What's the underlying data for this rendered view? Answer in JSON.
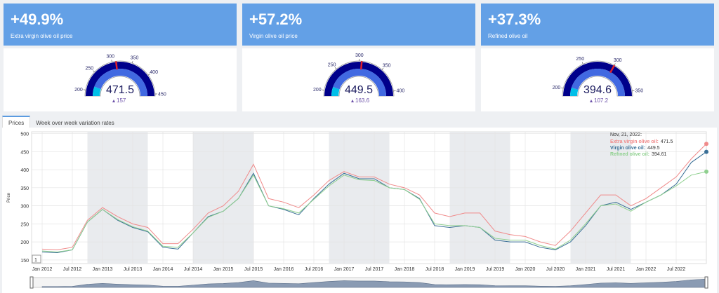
{
  "kpis": [
    {
      "value": "+49.9%",
      "label": "Extra virgin olive oil price"
    },
    {
      "value": "+57.2%",
      "label": "Virgin olive oil price"
    },
    {
      "value": "+37.3%",
      "label": "Refined olive oil"
    }
  ],
  "gauges": [
    {
      "value": 471.5,
      "delta": 157,
      "range": [
        185,
        455
      ],
      "ticks": [
        200,
        250,
        300,
        350,
        400,
        450
      ],
      "threshold": 310,
      "band_end": 215
    },
    {
      "value": 449.5,
      "delta": 163.6,
      "range": [
        188,
        410
      ],
      "ticks": [
        200,
        250,
        300,
        350,
        400
      ],
      "threshold": 305,
      "band_end": 212
    },
    {
      "value": 394.6,
      "delta": 107.2,
      "range": [
        188,
        358
      ],
      "ticks": [
        200,
        250,
        300,
        350
      ],
      "threshold": 300,
      "band_end": 205
    }
  ],
  "tabs": [
    "Prices",
    "Week over week variation rates"
  ],
  "zoom_input": "1",
  "tooltip": {
    "date": "Nov, 21, 2022:",
    "items": [
      {
        "label": "Extra virgin olive oil:",
        "value": 471.5
      },
      {
        "label": "Virgin olive oil:",
        "value": 449.5
      },
      {
        "label": "Refined olive oil:",
        "value": 394.61
      }
    ]
  },
  "chart_data": {
    "type": "line",
    "y_label": "Price",
    "x": [
      "Jan 2012",
      "Apr 2012",
      "Jul 2012",
      "Oct 2012",
      "Jan 2013",
      "Apr 2013",
      "Jul 2013",
      "Oct 2013",
      "Jan 2014",
      "Apr 2014",
      "Jul 2014",
      "Oct 2014",
      "Jan 2015",
      "Apr 2015",
      "Jul 2015",
      "Oct 2015",
      "Jan 2016",
      "Apr 2016",
      "Jul 2016",
      "Oct 2016",
      "Jan 2017",
      "Apr 2017",
      "Jul 2017",
      "Oct 2017",
      "Jan 2018",
      "Apr 2018",
      "Jul 2018",
      "Oct 2018",
      "Jan 2019",
      "Apr 2019",
      "Jul 2019",
      "Oct 2019",
      "Jan 2020",
      "Apr 2020",
      "Jul 2020",
      "Oct 2020",
      "Jan 2021",
      "Apr 2021",
      "Jul 2021",
      "Oct 2021",
      "Jan 2022",
      "Apr 2022",
      "Jul 2022",
      "Oct 2022",
      "Nov 2022"
    ],
    "xticks": [
      "Jan 2012",
      "Jul 2012",
      "Jan 2013",
      "Jul 2013",
      "Jan 2014",
      "Jul 2014",
      "Jan 2015",
      "Jul 2015",
      "Jan 2016",
      "Jul 2016",
      "Jan 2017",
      "Jul 2017",
      "Jan 2018",
      "Jul 2018",
      "Jan 2019",
      "Jul 2019",
      "Jan 2020",
      "Jul 2020",
      "Jan 2021",
      "Jul 2021",
      "Jan 2022",
      "Jul 2022"
    ],
    "shaded_ranges": [
      [
        "Oct 2012",
        "Oct 2013"
      ],
      [
        "Jul 2014",
        "Jul 2015"
      ],
      [
        "Oct 2016",
        "Oct 2017"
      ],
      [
        "Oct 2018",
        "Oct 2019"
      ],
      [
        "Oct 2020",
        "Oct 2021"
      ]
    ],
    "ylim": [
      140,
      505
    ],
    "yticks": [
      150,
      200,
      250,
      300,
      350,
      400,
      450,
      500
    ],
    "grid": true,
    "series": [
      {
        "name": "Extra virgin olive oil",
        "color": "#f08a8a",
        "values": [
          180,
          178,
          185,
          260,
          295,
          270,
          250,
          240,
          195,
          195,
          235,
          280,
          300,
          340,
          415,
          320,
          310,
          295,
          330,
          370,
          395,
          380,
          380,
          360,
          350,
          330,
          280,
          270,
          280,
          280,
          230,
          220,
          215,
          200,
          190,
          230,
          280,
          330,
          330,
          300,
          320,
          350,
          380,
          430,
          471.5
        ]
      },
      {
        "name": "Virgin olive oil",
        "color": "#3a6f96",
        "values": [
          172,
          170,
          178,
          255,
          290,
          260,
          240,
          228,
          185,
          180,
          225,
          270,
          285,
          320,
          390,
          300,
          290,
          275,
          320,
          360,
          390,
          375,
          375,
          350,
          345,
          320,
          245,
          240,
          245,
          240,
          205,
          200,
          200,
          185,
          178,
          200,
          245,
          300,
          310,
          290,
          310,
          330,
          360,
          420,
          449.5
        ]
      },
      {
        "name": "Refined olive oil",
        "color": "#8fd08f",
        "values": [
          175,
          172,
          178,
          255,
          290,
          262,
          242,
          230,
          188,
          185,
          225,
          268,
          285,
          320,
          385,
          300,
          292,
          280,
          318,
          355,
          385,
          372,
          370,
          350,
          345,
          318,
          250,
          245,
          245,
          240,
          210,
          205,
          205,
          190,
          180,
          205,
          250,
          300,
          305,
          285,
          310,
          330,
          355,
          385,
          394.61
        ]
      }
    ]
  }
}
